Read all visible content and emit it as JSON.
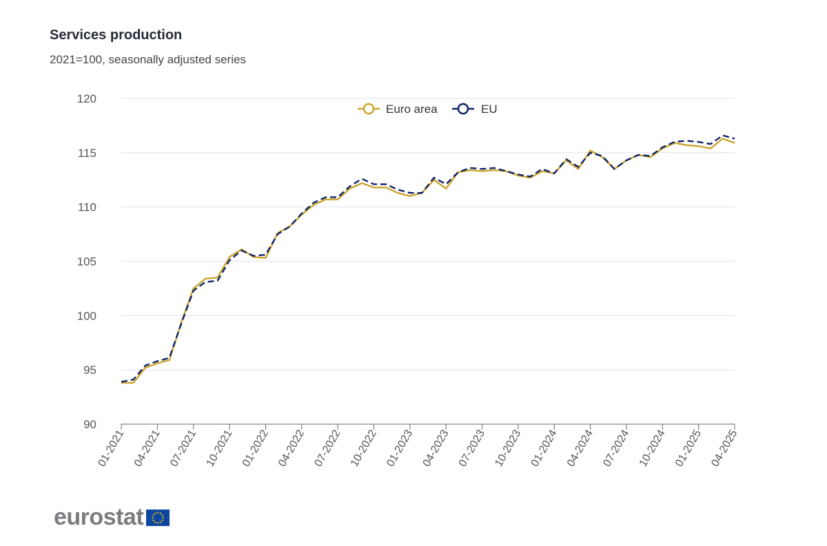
{
  "title": "Services production",
  "subtitle": "2021=100, seasonally adjusted series",
  "logo_text": "eurostat",
  "colors": {
    "euro_area": "#c9a42c",
    "eu": "#0e2166",
    "grid": "#dde1ec",
    "axis": "#555555",
    "flag_blue": "#0e47a1",
    "flag_star": "#ffd200"
  },
  "chart_data": {
    "type": "line",
    "title": "Services production",
    "subtitle": "2021=100, seasonally adjusted series",
    "xlabel": "",
    "ylabel": "",
    "ylim": [
      90,
      120
    ],
    "yticks": [
      90,
      95,
      100,
      105,
      110,
      115,
      120
    ],
    "grid": true,
    "legend_position": "top-center",
    "x": [
      "01-2021",
      "02-2021",
      "03-2021",
      "04-2021",
      "05-2021",
      "06-2021",
      "07-2021",
      "08-2021",
      "09-2021",
      "10-2021",
      "11-2021",
      "12-2021",
      "01-2022",
      "02-2022",
      "03-2022",
      "04-2022",
      "05-2022",
      "06-2022",
      "07-2022",
      "08-2022",
      "09-2022",
      "10-2022",
      "11-2022",
      "12-2022",
      "01-2023",
      "02-2023",
      "03-2023",
      "04-2023",
      "05-2023",
      "06-2023",
      "07-2023",
      "08-2023",
      "09-2023",
      "10-2023",
      "11-2023",
      "12-2023",
      "01-2024",
      "02-2024",
      "03-2024",
      "04-2024",
      "05-2024",
      "06-2024",
      "07-2024",
      "08-2024",
      "09-2024",
      "10-2024",
      "11-2024",
      "12-2024",
      "01-2025",
      "02-2025",
      "03-2025",
      "04-2025"
    ],
    "xticks": [
      "01-2021",
      "04-2021",
      "07-2021",
      "10-2021",
      "01-2022",
      "04-2022",
      "07-2022",
      "10-2022",
      "01-2023",
      "04-2023",
      "07-2023",
      "10-2023",
      "01-2024",
      "04-2024",
      "07-2024",
      "10-2024",
      "01-2025",
      "04-2025"
    ],
    "series": [
      {
        "name": "Euro area",
        "style": "solid",
        "values": [
          93.8,
          93.8,
          95.2,
          95.6,
          95.9,
          99.4,
          102.5,
          103.4,
          103.5,
          105.4,
          106.1,
          105.4,
          105.3,
          107.6,
          108.2,
          109.3,
          110.2,
          110.7,
          110.7,
          111.7,
          112.2,
          111.8,
          111.8,
          111.3,
          111.0,
          111.3,
          112.5,
          111.7,
          113.2,
          113.4,
          113.3,
          113.4,
          113.3,
          112.9,
          112.7,
          113.3,
          113.1,
          114.3,
          113.5,
          115.2,
          114.6,
          113.5,
          114.3,
          114.8,
          114.6,
          115.4,
          115.9,
          115.7,
          115.6,
          115.4,
          116.3,
          115.9
        ]
      },
      {
        "name": "EU",
        "style": "dashed",
        "values": [
          93.9,
          94.1,
          95.4,
          95.8,
          96.1,
          99.3,
          102.3,
          103.1,
          103.2,
          105.1,
          106.0,
          105.5,
          105.6,
          107.5,
          108.2,
          109.4,
          110.4,
          110.9,
          110.9,
          111.9,
          112.6,
          112.1,
          112.1,
          111.6,
          111.3,
          111.3,
          112.7,
          112.1,
          113.2,
          113.6,
          113.5,
          113.6,
          113.3,
          113.0,
          112.8,
          113.5,
          113.1,
          114.4,
          113.7,
          115.0,
          114.7,
          113.5,
          114.3,
          114.8,
          114.7,
          115.5,
          116.0,
          116.1,
          116.0,
          115.8,
          116.6,
          116.3
        ]
      }
    ]
  }
}
